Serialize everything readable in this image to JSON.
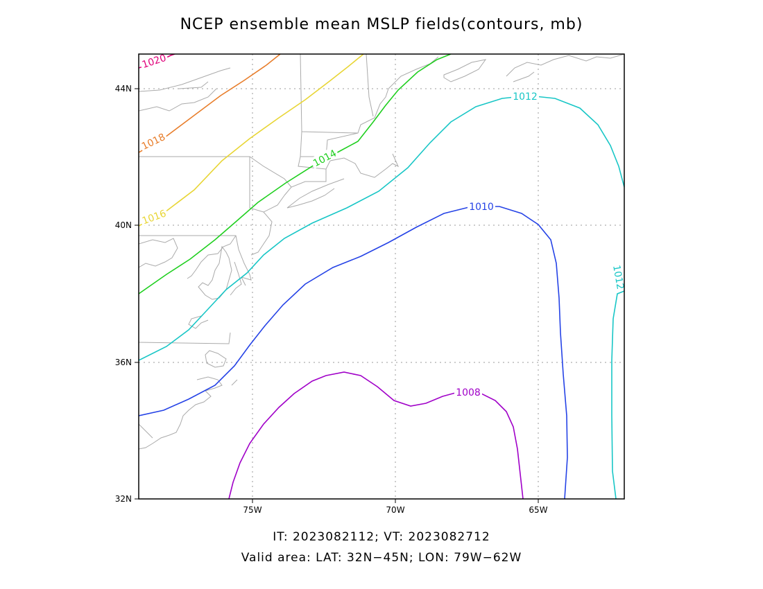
{
  "title": "NCEP ensemble mean MSLP fields(contours, mb)",
  "footer": {
    "line1": "IT: 2023082112; VT: 2023082712",
    "line2": "Valid area: LAT: 32N−45N; LON: 79W−62W"
  },
  "axes": {
    "x_ticks": [
      "75W",
      "70W",
      "65W"
    ],
    "y_ticks": [
      "32N",
      "36N",
      "40N",
      "44N"
    ]
  },
  "map": {
    "lat_range": [
      32,
      45
    ],
    "lon_range": [
      -79,
      -62
    ],
    "grid": true,
    "coastline_color": "#aaaaaa",
    "grid_color": "#888888"
  },
  "contours": [
    {
      "level": "1020",
      "color": "#e0007a"
    },
    {
      "level": "1018",
      "color": "#e87d2a"
    },
    {
      "level": "1016",
      "color": "#e8d534"
    },
    {
      "level": "1014",
      "color": "#1fcf1f"
    },
    {
      "level": "1012",
      "color": "#18c6c6"
    },
    {
      "level": "1010",
      "color": "#2442e6"
    },
    {
      "level": "1008",
      "color": "#a000c8"
    }
  ]
}
